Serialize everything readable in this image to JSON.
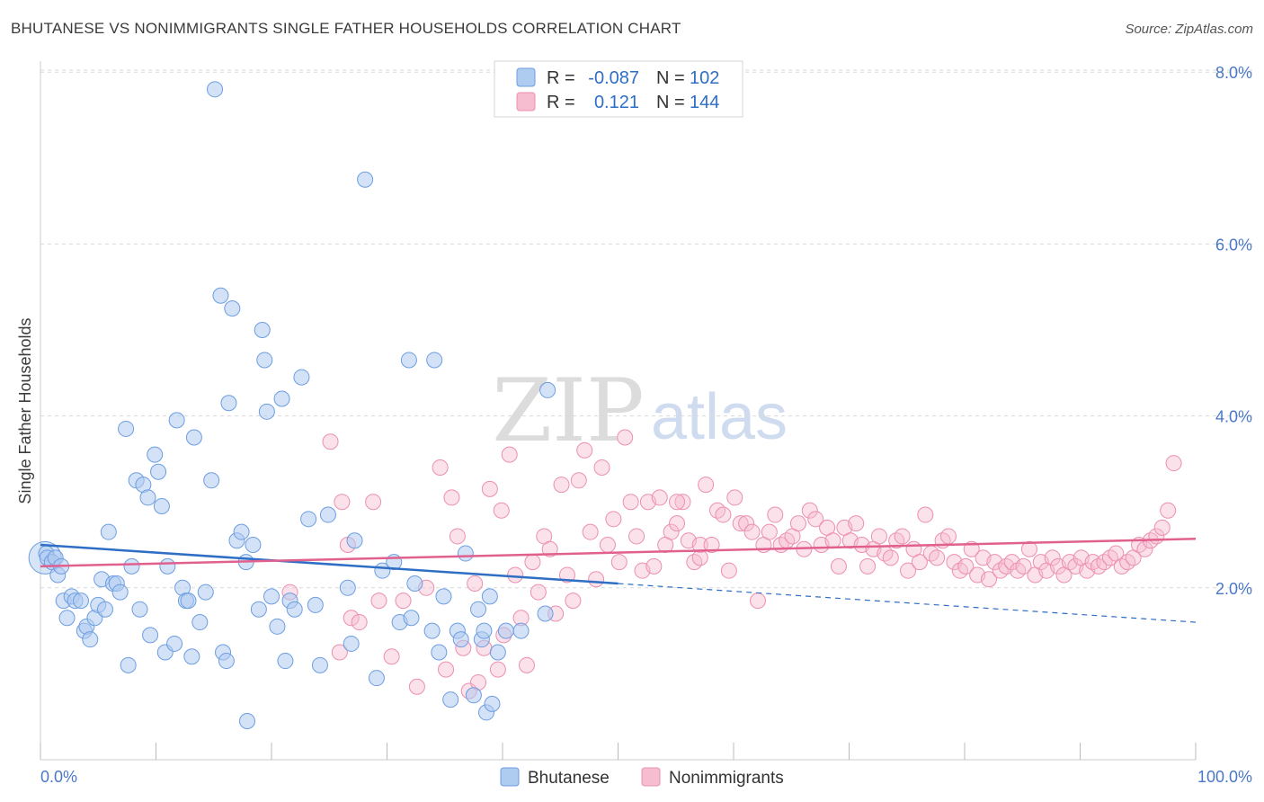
{
  "header": {
    "title": "BHUTANESE VS NONIMMIGRANTS SINGLE FATHER HOUSEHOLDS CORRELATION CHART",
    "source": "Source: ZipAtlas.com"
  },
  "watermark": {
    "zip": "ZIP",
    "atlas": "atlas"
  },
  "legend": {
    "r_label": "R =",
    "n_label": "N =",
    "rows": [
      {
        "r": "-0.087",
        "n": "102",
        "color": "#aecbf0"
      },
      {
        "r": "0.121",
        "n": "144",
        "color": "#f6bcd0"
      }
    ]
  },
  "bottom_legend": [
    {
      "label": "Bhutanese",
      "color": "#aecbf0"
    },
    {
      "label": "Nonimmigrants",
      "color": "#f6bcd0"
    }
  ],
  "colors": {
    "blue_fill": "#aecbf0",
    "blue_stroke": "#6d9ee0",
    "blue_line": "#2f6ec5",
    "pink_fill": "#f6bcd0",
    "pink_stroke": "#ec8fb0",
    "pink_line": "#e0608e",
    "axis_tick": "#4a78c8",
    "grid": "#d9d9d9"
  },
  "chart_data": {
    "type": "scatter",
    "title": "BHUTANESE VS NONIMMIGRANTS SINGLE FATHER HOUSEHOLDS CORRELATION CHART",
    "xlabel": "",
    "ylabel": "Single Father Households",
    "xlim": [
      0,
      100
    ],
    "ylim": [
      0,
      8.2
    ],
    "x_tick_labels": [
      "0.0%",
      "100.0%"
    ],
    "y_ticks": [
      2,
      4,
      6,
      8
    ],
    "y_tick_labels": [
      "2.0%",
      "4.0%",
      "6.0%",
      "8.0%"
    ],
    "grid": "horizontal dashed",
    "legend_position": "top-center",
    "series": [
      {
        "name": "Bhutanese",
        "trend": {
          "x0": 0,
          "y0": 2.5,
          "x1": 50,
          "y1": 2.05,
          "dashed_to_x": 100,
          "dashed_to_y": 1.6
        },
        "points": [
          [
            0.5,
            2.4
          ],
          [
            0.6,
            2.35
          ],
          [
            1,
            2.3
          ],
          [
            1.3,
            2.35
          ],
          [
            1.5,
            2.15
          ],
          [
            1.8,
            2.25
          ],
          [
            2,
            1.85
          ],
          [
            2.3,
            1.65
          ],
          [
            2.7,
            1.9
          ],
          [
            3,
            1.85
          ],
          [
            3.5,
            1.85
          ],
          [
            3.8,
            1.5
          ],
          [
            4,
            1.55
          ],
          [
            4.3,
            1.4
          ],
          [
            4.7,
            1.65
          ],
          [
            5,
            1.8
          ],
          [
            5.3,
            2.1
          ],
          [
            5.6,
            1.75
          ],
          [
            5.9,
            2.65
          ],
          [
            6.3,
            2.05
          ],
          [
            6.6,
            2.05
          ],
          [
            6.9,
            1.95
          ],
          [
            7.4,
            3.85
          ],
          [
            7.6,
            1.1
          ],
          [
            7.9,
            2.25
          ],
          [
            8.3,
            3.25
          ],
          [
            8.6,
            1.75
          ],
          [
            8.9,
            3.2
          ],
          [
            9.3,
            3.05
          ],
          [
            9.5,
            1.45
          ],
          [
            9.9,
            3.55
          ],
          [
            10.2,
            3.35
          ],
          [
            10.5,
            2.95
          ],
          [
            10.8,
            1.25
          ],
          [
            11,
            2.25
          ],
          [
            11.6,
            1.35
          ],
          [
            11.8,
            3.95
          ],
          [
            12.3,
            2.0
          ],
          [
            12.6,
            1.85
          ],
          [
            12.8,
            1.85
          ],
          [
            13.1,
            1.2
          ],
          [
            13.3,
            3.75
          ],
          [
            13.8,
            1.6
          ],
          [
            14.3,
            1.95
          ],
          [
            14.8,
            3.25
          ],
          [
            15.1,
            7.8
          ],
          [
            15.6,
            5.4
          ],
          [
            15.8,
            1.25
          ],
          [
            16.1,
            1.15
          ],
          [
            16.3,
            4.15
          ],
          [
            16.6,
            5.25
          ],
          [
            17,
            2.55
          ],
          [
            17.4,
            2.65
          ],
          [
            17.8,
            2.3
          ],
          [
            17.9,
            0.45
          ],
          [
            18.4,
            2.5
          ],
          [
            18.9,
            1.75
          ],
          [
            19.2,
            5.0
          ],
          [
            19.4,
            4.65
          ],
          [
            19.6,
            4.05
          ],
          [
            20,
            1.9
          ],
          [
            20.5,
            1.55
          ],
          [
            20.9,
            4.2
          ],
          [
            21.2,
            1.15
          ],
          [
            21.6,
            1.85
          ],
          [
            22,
            1.75
          ],
          [
            22.6,
            4.45
          ],
          [
            23.2,
            2.8
          ],
          [
            23.8,
            1.8
          ],
          [
            24.2,
            1.1
          ],
          [
            24.9,
            2.85
          ],
          [
            26.6,
            2.0
          ],
          [
            26.9,
            1.35
          ],
          [
            27.2,
            2.55
          ],
          [
            28.1,
            6.75
          ],
          [
            29.1,
            0.95
          ],
          [
            29.6,
            2.2
          ],
          [
            30.6,
            2.3
          ],
          [
            31.1,
            1.6
          ],
          [
            31.9,
            4.65
          ],
          [
            32.1,
            1.65
          ],
          [
            32.4,
            2.05
          ],
          [
            33.9,
            1.5
          ],
          [
            34.1,
            4.65
          ],
          [
            34.5,
            1.25
          ],
          [
            34.9,
            1.9
          ],
          [
            35.5,
            0.7
          ],
          [
            36.1,
            1.5
          ],
          [
            36.4,
            1.4
          ],
          [
            36.8,
            2.4
          ],
          [
            37.5,
            0.75
          ],
          [
            37.9,
            1.75
          ],
          [
            38.2,
            1.4
          ],
          [
            38.4,
            1.5
          ],
          [
            38.6,
            0.55
          ],
          [
            38.9,
            1.9
          ],
          [
            39.1,
            0.65
          ],
          [
            39.6,
            1.25
          ],
          [
            40.3,
            1.5
          ],
          [
            41.6,
            1.5
          ],
          [
            43.7,
            1.7
          ],
          [
            43.9,
            4.3
          ]
        ]
      },
      {
        "name": "Nonimmigrants",
        "trend": {
          "x0": 0,
          "y0": 2.25,
          "x1": 100,
          "y1": 2.57
        },
        "points": [
          [
            21.6,
            1.95
          ],
          [
            25.1,
            3.7
          ],
          [
            25.9,
            1.25
          ],
          [
            26.1,
            3.0
          ],
          [
            26.6,
            2.5
          ],
          [
            26.9,
            1.65
          ],
          [
            27.6,
            1.6
          ],
          [
            28.8,
            3.0
          ],
          [
            29.3,
            1.85
          ],
          [
            30.4,
            1.2
          ],
          [
            31.4,
            1.85
          ],
          [
            32.6,
            0.85
          ],
          [
            33.4,
            2.0
          ],
          [
            34.6,
            3.4
          ],
          [
            35.1,
            1.05
          ],
          [
            35.6,
            3.05
          ],
          [
            36.1,
            2.6
          ],
          [
            36.6,
            1.3
          ],
          [
            37.1,
            0.8
          ],
          [
            37.6,
            2.05
          ],
          [
            37.9,
            0.9
          ],
          [
            38.4,
            1.3
          ],
          [
            38.9,
            3.15
          ],
          [
            39.6,
            1.05
          ],
          [
            39.9,
            2.9
          ],
          [
            40.1,
            1.45
          ],
          [
            40.6,
            3.55
          ],
          [
            41.1,
            2.15
          ],
          [
            41.6,
            1.65
          ],
          [
            42.1,
            1.1
          ],
          [
            42.6,
            2.3
          ],
          [
            43.1,
            1.95
          ],
          [
            43.6,
            2.6
          ],
          [
            44.1,
            2.45
          ],
          [
            44.6,
            1.7
          ],
          [
            45.1,
            3.2
          ],
          [
            45.6,
            2.15
          ],
          [
            46.1,
            1.85
          ],
          [
            46.6,
            3.25
          ],
          [
            47.1,
            3.6
          ],
          [
            47.6,
            2.65
          ],
          [
            48.1,
            2.1
          ],
          [
            48.6,
            3.4
          ],
          [
            49.1,
            2.5
          ],
          [
            49.6,
            2.8
          ],
          [
            50.1,
            2.3
          ],
          [
            50.6,
            3.75
          ],
          [
            51.1,
            3.0
          ],
          [
            51.6,
            2.6
          ],
          [
            52.1,
            2.2
          ],
          [
            52.6,
            3.0
          ],
          [
            53.1,
            2.25
          ],
          [
            53.6,
            3.05
          ],
          [
            54.1,
            2.5
          ],
          [
            54.6,
            2.65
          ],
          [
            55.1,
            2.75
          ],
          [
            55.6,
            3.0
          ],
          [
            56.1,
            2.55
          ],
          [
            56.6,
            2.3
          ],
          [
            57.1,
            2.5
          ],
          [
            57.6,
            3.2
          ],
          [
            58.1,
            2.5
          ],
          [
            58.6,
            2.9
          ],
          [
            59.1,
            2.85
          ],
          [
            59.6,
            2.2
          ],
          [
            60.1,
            3.05
          ],
          [
            60.6,
            2.75
          ],
          [
            61.1,
            2.75
          ],
          [
            61.6,
            2.65
          ],
          [
            62.1,
            1.85
          ],
          [
            62.6,
            2.5
          ],
          [
            63.1,
            2.65
          ],
          [
            63.6,
            2.85
          ],
          [
            64.1,
            2.5
          ],
          [
            64.6,
            2.55
          ],
          [
            65.1,
            2.6
          ],
          [
            65.6,
            2.75
          ],
          [
            66.1,
            2.45
          ],
          [
            66.6,
            2.9
          ],
          [
            67.1,
            2.8
          ],
          [
            67.6,
            2.5
          ],
          [
            68.1,
            2.7
          ],
          [
            68.6,
            2.55
          ],
          [
            69.1,
            2.25
          ],
          [
            69.6,
            2.7
          ],
          [
            70.1,
            2.55
          ],
          [
            70.6,
            2.75
          ],
          [
            71.1,
            2.5
          ],
          [
            71.6,
            2.25
          ],
          [
            72.1,
            2.45
          ],
          [
            72.6,
            2.6
          ],
          [
            73.1,
            2.4
          ],
          [
            73.6,
            2.35
          ],
          [
            74.1,
            2.55
          ],
          [
            74.6,
            2.6
          ],
          [
            75.1,
            2.2
          ],
          [
            75.6,
            2.45
          ],
          [
            76.1,
            2.3
          ],
          [
            76.6,
            2.85
          ],
          [
            77.1,
            2.4
          ],
          [
            77.6,
            2.35
          ],
          [
            78.1,
            2.55
          ],
          [
            78.6,
            2.6
          ],
          [
            79.1,
            2.3
          ],
          [
            79.6,
            2.2
          ],
          [
            80.1,
            2.25
          ],
          [
            80.6,
            2.45
          ],
          [
            81.1,
            2.15
          ],
          [
            81.6,
            2.35
          ],
          [
            82.1,
            2.1
          ],
          [
            82.6,
            2.3
          ],
          [
            83.1,
            2.2
          ],
          [
            83.6,
            2.25
          ],
          [
            84.1,
            2.3
          ],
          [
            84.6,
            2.2
          ],
          [
            85.1,
            2.25
          ],
          [
            85.6,
            2.45
          ],
          [
            86.1,
            2.15
          ],
          [
            86.6,
            2.3
          ],
          [
            87.1,
            2.2
          ],
          [
            87.6,
            2.35
          ],
          [
            88.1,
            2.25
          ],
          [
            88.6,
            2.15
          ],
          [
            89.1,
            2.3
          ],
          [
            89.6,
            2.25
          ],
          [
            90.1,
            2.35
          ],
          [
            90.6,
            2.2
          ],
          [
            91.1,
            2.3
          ],
          [
            91.6,
            2.25
          ],
          [
            92.1,
            2.3
          ],
          [
            92.6,
            2.35
          ],
          [
            93.1,
            2.4
          ],
          [
            93.6,
            2.25
          ],
          [
            94.1,
            2.3
          ],
          [
            94.6,
            2.35
          ],
          [
            95.1,
            2.5
          ],
          [
            95.6,
            2.45
          ],
          [
            96.1,
            2.55
          ],
          [
            96.6,
            2.6
          ],
          [
            97.1,
            2.7
          ],
          [
            97.6,
            2.9
          ],
          [
            98.1,
            3.45
          ],
          [
            57.1,
            2.35
          ],
          [
            55.1,
            3.0
          ]
        ]
      }
    ]
  }
}
